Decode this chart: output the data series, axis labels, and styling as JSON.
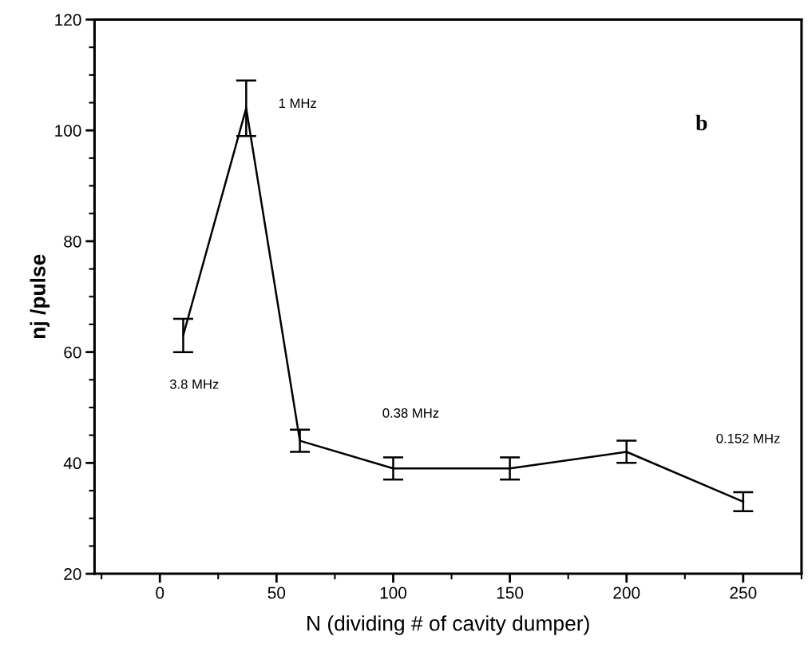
{
  "chart_data": {
    "type": "line",
    "xlabel": "N (dividing # of cavity dumper)",
    "ylabel": "nj /pulse",
    "x": [
      10,
      37,
      60,
      100,
      150,
      200,
      250
    ],
    "series": [
      {
        "color": "#000000",
        "values": [
          63,
          104,
          44,
          39,
          39,
          42,
          33
        ],
        "errors": [
          3,
          5,
          2,
          2,
          2,
          2,
          1.7
        ]
      }
    ],
    "xlim": [
      -28,
      275
    ],
    "xticks": [
      0,
      50,
      100,
      150,
      200,
      250
    ],
    "ylim": [
      20,
      120
    ],
    "yticks": [
      20,
      40,
      60,
      80,
      100,
      120
    ],
    "grid": false,
    "marker": "none",
    "line_style": "solid",
    "annotations": [
      "1 MHz",
      "3.8 MHz",
      "0.38 MHz",
      "0.152 MHz",
      "b"
    ]
  }
}
